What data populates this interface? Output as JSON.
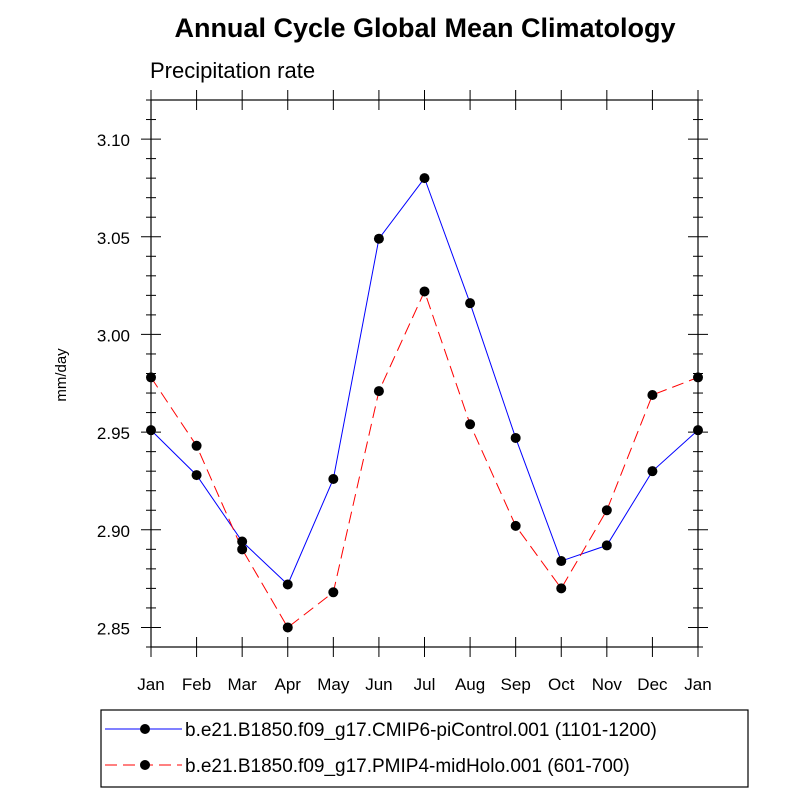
{
  "chart_data": {
    "type": "line",
    "title": "Annual Cycle Global Mean Climatology",
    "subtitle": "Precipitation rate",
    "xlabel": "",
    "ylabel": "mm/day",
    "categories": [
      "Jan",
      "Feb",
      "Mar",
      "Apr",
      "May",
      "Jun",
      "Jul",
      "Aug",
      "Sep",
      "Oct",
      "Nov",
      "Dec",
      "Jan"
    ],
    "ylim": [
      2.84,
      3.12
    ],
    "yticks": [
      2.85,
      2.9,
      2.95,
      3.0,
      3.05,
      3.1
    ],
    "ytick_labels": [
      "2.85",
      "2.90",
      "2.95",
      "3.00",
      "3.05",
      "3.10"
    ],
    "grid": false,
    "legend_position": "bottom",
    "series": [
      {
        "name": "b.e21.B1850.f09_g17.CMIP6-piControl.001 (1101-1200)",
        "color": "#0000ff",
        "dash": "solid",
        "values": [
          2.951,
          2.928,
          2.894,
          2.872,
          2.926,
          3.049,
          3.08,
          3.016,
          2.947,
          2.884,
          2.892,
          2.93,
          2.951
        ]
      },
      {
        "name": "b.e21.B1850.f09_g17.PMIP4-midHolo.001 (601-700)",
        "color": "#ff0000",
        "dash": "dashed",
        "values": [
          2.978,
          2.943,
          2.89,
          2.85,
          2.868,
          2.971,
          3.022,
          2.954,
          2.902,
          2.87,
          2.91,
          2.969,
          2.978
        ]
      }
    ]
  }
}
